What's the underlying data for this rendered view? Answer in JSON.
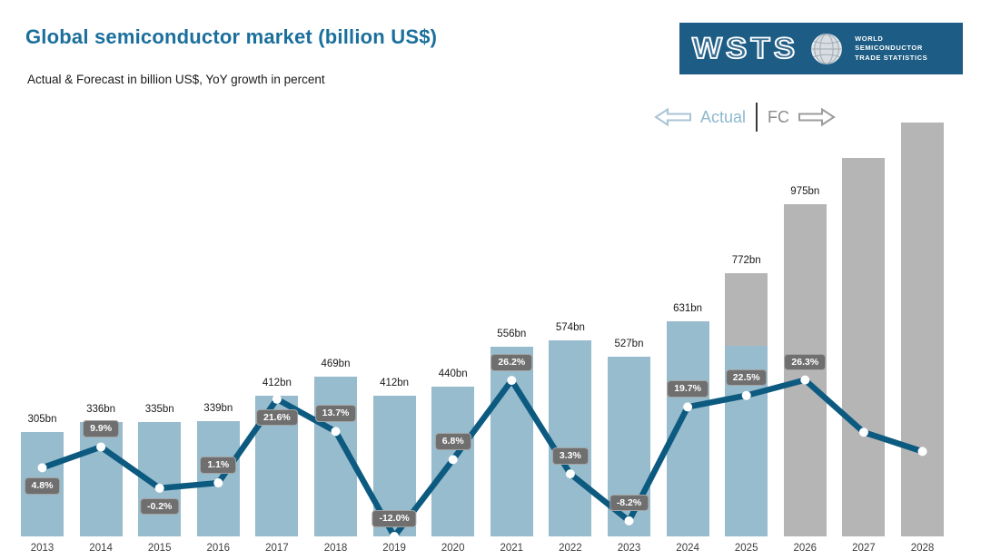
{
  "header": {
    "title": "Global semiconductor market (billion US$)",
    "subtitle": "Actual & Forecast in billion US$, YoY growth in percent"
  },
  "logo": {
    "wordmark": "WSTS",
    "org_lines": [
      "WORLD",
      "SEMICONDUCTOR",
      "TRADE STATISTICS"
    ]
  },
  "legend": {
    "actual_label": "Actual",
    "forecast_label": "FC"
  },
  "colors": {
    "title": "#1b6f9c",
    "logo_bg": "#1d5c84",
    "bar_actual": "#97bccd",
    "bar_forecast": "#b5b5b5",
    "growth_line": "#0d5a80",
    "badge_bg": "#6f6f6f",
    "badge_border": "#a3a3a3",
    "badge_text": "#ffffff",
    "legend_actual": "#8fb8cf",
    "legend_fc": "#8c8c8c"
  },
  "chart_data": {
    "type": "bar+line",
    "title": "Global semiconductor market (billion US$)",
    "categories": [
      "2013",
      "2014",
      "2015",
      "2016",
      "2017",
      "2018",
      "2019",
      "2020",
      "2021",
      "2022",
      "2023",
      "2024",
      "2025",
      "2026",
      "2027",
      "2028"
    ],
    "series": [
      {
        "name": "Market size (billion US$)",
        "type": "bar",
        "values": [
          305,
          336,
          335,
          339,
          412,
          469,
          412,
          440,
          556,
          574,
          527,
          631,
          772,
          975,
          1110,
          1215
        ],
        "value_labels": [
          "305bn",
          "336bn",
          "335bn",
          "339bn",
          "412bn",
          "469bn",
          "412bn",
          "440bn",
          "556bn",
          "574bn",
          "527bn",
          "631bn",
          "772bn",
          "975bn",
          "",
          ""
        ],
        "bar_kind": [
          "actual",
          "actual",
          "actual",
          "actual",
          "actual",
          "actual",
          "actual",
          "actual",
          "actual",
          "actual",
          "actual",
          "actual",
          "partial",
          "forecast",
          "forecast",
          "forecast"
        ],
        "partial_actual_value": 560
      },
      {
        "name": "YoY growth (%)",
        "type": "line",
        "values": [
          4.8,
          9.9,
          -0.2,
          1.1,
          21.6,
          13.7,
          -12.0,
          6.8,
          26.2,
          3.3,
          -8.2,
          19.7,
          22.5,
          26.3,
          13.5,
          8.8
        ],
        "value_labels": [
          "4.8%",
          "9.9%",
          "-0.2%",
          "1.1%",
          "21.6%",
          "13.7%",
          "-12.0%",
          "6.8%",
          "26.2%",
          "3.3%",
          "-8.2%",
          "19.7%",
          "22.5%",
          "26.3%",
          "",
          ""
        ],
        "label_side": [
          "below",
          "above",
          "below",
          "above",
          "below",
          "above",
          "above",
          "above",
          "above",
          "above",
          "above",
          "above",
          "above",
          "above",
          "",
          ""
        ]
      }
    ],
    "ylim_bars": [
      0,
      1307
    ],
    "grid": false,
    "legend_position": "top-right",
    "notes": "2026-2028 bars are forecast (gray); 2025 bar is part actual / part forecast"
  }
}
